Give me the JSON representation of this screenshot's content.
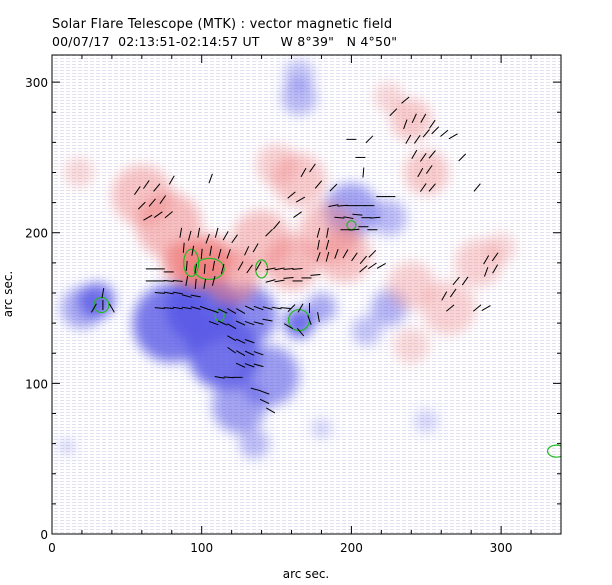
{
  "header": {
    "title": "Solar Flare Telescope (MTK) : vector magnetic field",
    "subtitle": "00/07/17  02:13:51-02:14:57 UT     W 8°39\"   N 4°50\""
  },
  "chart_data": {
    "type": "heatmap",
    "title": "Solar Flare Telescope (MTK) : vector magnetic field",
    "subtitle": "00/07/17  02:13:51-02:14:57 UT     W 8°39\"   N 4°50\"",
    "xlabel": "arc sec.",
    "ylabel": "arc sec.",
    "xlim": [
      0,
      340
    ],
    "ylim": [
      0,
      318
    ],
    "xticks": [
      0,
      100,
      200,
      300
    ],
    "yticks": [
      0,
      100,
      200,
      300
    ],
    "grid": false,
    "colors": {
      "positive_polarity": "#f08080",
      "negative_polarity": "#5a5ae6",
      "contour": "#22bb22",
      "vector": "#000000"
    },
    "positive_regions": [
      {
        "cx": 97,
        "cy": 175,
        "r": 12,
        "s": 1.0
      },
      {
        "cx": 105,
        "cy": 182,
        "r": 16,
        "s": 0.85
      },
      {
        "cx": 88,
        "cy": 180,
        "r": 14,
        "s": 0.8
      },
      {
        "cx": 120,
        "cy": 170,
        "r": 18,
        "s": 0.55
      },
      {
        "cx": 60,
        "cy": 225,
        "r": 20,
        "s": 0.45
      },
      {
        "cx": 78,
        "cy": 205,
        "r": 22,
        "s": 0.5
      },
      {
        "cx": 140,
        "cy": 195,
        "r": 20,
        "s": 0.45
      },
      {
        "cx": 160,
        "cy": 180,
        "r": 18,
        "s": 0.5
      },
      {
        "cx": 185,
        "cy": 200,
        "r": 20,
        "s": 0.45
      },
      {
        "cx": 195,
        "cy": 185,
        "r": 18,
        "s": 0.45
      },
      {
        "cx": 165,
        "cy": 235,
        "r": 18,
        "s": 0.4
      },
      {
        "cx": 150,
        "cy": 245,
        "r": 14,
        "s": 0.35
      },
      {
        "cx": 250,
        "cy": 240,
        "r": 15,
        "s": 0.4
      },
      {
        "cx": 240,
        "cy": 275,
        "r": 14,
        "s": 0.4
      },
      {
        "cx": 225,
        "cy": 290,
        "r": 10,
        "s": 0.3
      },
      {
        "cx": 285,
        "cy": 180,
        "r": 16,
        "s": 0.35
      },
      {
        "cx": 265,
        "cy": 150,
        "r": 18,
        "s": 0.35
      },
      {
        "cx": 240,
        "cy": 165,
        "r": 16,
        "s": 0.35
      },
      {
        "cx": 240,
        "cy": 125,
        "r": 12,
        "s": 0.3
      },
      {
        "cx": 18,
        "cy": 240,
        "r": 10,
        "s": 0.3
      },
      {
        "cx": 300,
        "cy": 190,
        "r": 10,
        "s": 0.3
      }
    ],
    "negative_regions": [
      {
        "cx": 100,
        "cy": 150,
        "r": 24,
        "s": 0.9
      },
      {
        "cx": 80,
        "cy": 140,
        "r": 26,
        "s": 0.8
      },
      {
        "cx": 115,
        "cy": 120,
        "r": 24,
        "s": 0.85
      },
      {
        "cx": 130,
        "cy": 145,
        "r": 20,
        "s": 0.7
      },
      {
        "cx": 145,
        "cy": 105,
        "r": 20,
        "s": 0.6
      },
      {
        "cx": 125,
        "cy": 85,
        "r": 18,
        "s": 0.55
      },
      {
        "cx": 30,
        "cy": 155,
        "r": 12,
        "s": 0.8
      },
      {
        "cx": 20,
        "cy": 150,
        "r": 14,
        "s": 0.5
      },
      {
        "cx": 165,
        "cy": 140,
        "r": 10,
        "s": 0.85
      },
      {
        "cx": 180,
        "cy": 150,
        "r": 10,
        "s": 0.5
      },
      {
        "cx": 200,
        "cy": 215,
        "r": 18,
        "s": 0.55
      },
      {
        "cx": 225,
        "cy": 210,
        "r": 12,
        "s": 0.4
      },
      {
        "cx": 165,
        "cy": 290,
        "r": 12,
        "s": 0.4
      },
      {
        "cx": 165,
        "cy": 305,
        "r": 10,
        "s": 0.35
      },
      {
        "cx": 225,
        "cy": 150,
        "r": 12,
        "s": 0.45
      },
      {
        "cx": 210,
        "cy": 135,
        "r": 10,
        "s": 0.35
      },
      {
        "cx": 135,
        "cy": 60,
        "r": 10,
        "s": 0.4
      },
      {
        "cx": 250,
        "cy": 75,
        "r": 8,
        "s": 0.25
      },
      {
        "cx": 10,
        "cy": 58,
        "r": 5,
        "s": 0.3
      },
      {
        "cx": 180,
        "cy": 70,
        "r": 7,
        "s": 0.25
      }
    ],
    "contours": [
      {
        "cx": 33,
        "cy": 152,
        "rx": 5,
        "ry": 5
      },
      {
        "cx": 165,
        "cy": 142,
        "rx": 7,
        "ry": 7
      },
      {
        "cx": 93,
        "cy": 180,
        "rx": 5,
        "ry": 9
      },
      {
        "cx": 105,
        "cy": 176,
        "rx": 10,
        "ry": 7
      },
      {
        "cx": 140,
        "cy": 176,
        "rx": 4,
        "ry": 6
      },
      {
        "cx": 112,
        "cy": 145,
        "rx": 3,
        "ry": 4
      },
      {
        "cx": 337,
        "cy": 55,
        "rx": 6,
        "ry": 4
      },
      {
        "cx": 200,
        "cy": 205,
        "rx": 3,
        "ry": 3
      }
    ],
    "vectors": [
      {
        "x": 57,
        "y": 228,
        "a": 55
      },
      {
        "x": 63,
        "y": 232,
        "a": 55
      },
      {
        "x": 70,
        "y": 230,
        "a": 50
      },
      {
        "x": 60,
        "y": 218,
        "a": 45
      },
      {
        "x": 67,
        "y": 220,
        "a": 50
      },
      {
        "x": 74,
        "y": 222,
        "a": 55
      },
      {
        "x": 80,
        "y": 235,
        "a": 60
      },
      {
        "x": 64,
        "y": 210,
        "a": 30
      },
      {
        "x": 71,
        "y": 212,
        "a": 35
      },
      {
        "x": 78,
        "y": 212,
        "a": 40
      },
      {
        "x": 106,
        "y": 236,
        "a": 70
      },
      {
        "x": 86,
        "y": 200,
        "a": 80
      },
      {
        "x": 92,
        "y": 198,
        "a": 75
      },
      {
        "x": 98,
        "y": 200,
        "a": 80
      },
      {
        "x": 104,
        "y": 196,
        "a": 70
      },
      {
        "x": 110,
        "y": 200,
        "a": 75
      },
      {
        "x": 116,
        "y": 198,
        "a": 60
      },
      {
        "x": 122,
        "y": 196,
        "a": 55
      },
      {
        "x": 88,
        "y": 190,
        "a": 85
      },
      {
        "x": 94,
        "y": 188,
        "a": 80
      },
      {
        "x": 100,
        "y": 186,
        "a": 85
      },
      {
        "x": 106,
        "y": 188,
        "a": 80
      },
      {
        "x": 112,
        "y": 186,
        "a": 75
      },
      {
        "x": 118,
        "y": 186,
        "a": 70
      },
      {
        "x": 90,
        "y": 178,
        "a": 85
      },
      {
        "x": 96,
        "y": 176,
        "a": 80
      },
      {
        "x": 102,
        "y": 176,
        "a": 85
      },
      {
        "x": 108,
        "y": 178,
        "a": 80
      },
      {
        "x": 114,
        "y": 176,
        "a": 75
      },
      {
        "x": 90,
        "y": 168,
        "a": 80
      },
      {
        "x": 96,
        "y": 166,
        "a": 85
      },
      {
        "x": 102,
        "y": 166,
        "a": 80
      },
      {
        "x": 108,
        "y": 168,
        "a": 75
      },
      {
        "x": 126,
        "y": 178,
        "a": 60
      },
      {
        "x": 132,
        "y": 176,
        "a": 55
      },
      {
        "x": 138,
        "y": 178,
        "a": 60
      },
      {
        "x": 130,
        "y": 188,
        "a": 65
      },
      {
        "x": 136,
        "y": 190,
        "a": 60
      },
      {
        "x": 145,
        "y": 200,
        "a": 45
      },
      {
        "x": 150,
        "y": 205,
        "a": 50
      },
      {
        "x": 146,
        "y": 176,
        "a": 10
      },
      {
        "x": 152,
        "y": 176,
        "a": 10
      },
      {
        "x": 158,
        "y": 176,
        "a": 5
      },
      {
        "x": 164,
        "y": 176,
        "a": 5
      },
      {
        "x": 146,
        "y": 168,
        "a": 15
      },
      {
        "x": 152,
        "y": 168,
        "a": 10
      },
      {
        "x": 158,
        "y": 170,
        "a": 5
      },
      {
        "x": 164,
        "y": 168,
        "a": 0
      },
      {
        "x": 170,
        "y": 170,
        "a": 0
      },
      {
        "x": 176,
        "y": 172,
        "a": 5
      },
      {
        "x": 178,
        "y": 200,
        "a": 75
      },
      {
        "x": 184,
        "y": 200,
        "a": 80
      },
      {
        "x": 178,
        "y": 192,
        "a": 80
      },
      {
        "x": 184,
        "y": 192,
        "a": 75
      },
      {
        "x": 178,
        "y": 184,
        "a": 70
      },
      {
        "x": 184,
        "y": 184,
        "a": 75
      },
      {
        "x": 190,
        "y": 186,
        "a": 70
      },
      {
        "x": 196,
        "y": 186,
        "a": 60
      },
      {
        "x": 202,
        "y": 184,
        "a": 55
      },
      {
        "x": 208,
        "y": 182,
        "a": 50
      },
      {
        "x": 214,
        "y": 186,
        "a": 45
      },
      {
        "x": 208,
        "y": 176,
        "a": 40
      },
      {
        "x": 214,
        "y": 178,
        "a": 35
      },
      {
        "x": 220,
        "y": 178,
        "a": 30
      },
      {
        "x": 236,
        "y": 272,
        "a": 70
      },
      {
        "x": 242,
        "y": 276,
        "a": 65
      },
      {
        "x": 248,
        "y": 276,
        "a": 60
      },
      {
        "x": 254,
        "y": 272,
        "a": 55
      },
      {
        "x": 238,
        "y": 262,
        "a": 60
      },
      {
        "x": 244,
        "y": 262,
        "a": 55
      },
      {
        "x": 250,
        "y": 266,
        "a": 50
      },
      {
        "x": 256,
        "y": 268,
        "a": 45
      },
      {
        "x": 262,
        "y": 266,
        "a": 40
      },
      {
        "x": 268,
        "y": 264,
        "a": 30
      },
      {
        "x": 242,
        "y": 252,
        "a": 60
      },
      {
        "x": 248,
        "y": 250,
        "a": 55
      },
      {
        "x": 254,
        "y": 252,
        "a": 50
      },
      {
        "x": 246,
        "y": 240,
        "a": 60
      },
      {
        "x": 252,
        "y": 242,
        "a": 55
      },
      {
        "x": 248,
        "y": 230,
        "a": 55
      },
      {
        "x": 254,
        "y": 230,
        "a": 50
      },
      {
        "x": 274,
        "y": 250,
        "a": 45
      },
      {
        "x": 284,
        "y": 230,
        "a": 50
      },
      {
        "x": 228,
        "y": 280,
        "a": 45
      },
      {
        "x": 236,
        "y": 288,
        "a": 40
      },
      {
        "x": 208,
        "y": 240,
        "a": 85
      },
      {
        "x": 188,
        "y": 230,
        "a": 45
      },
      {
        "x": 168,
        "y": 240,
        "a": 60
      },
      {
        "x": 174,
        "y": 243,
        "a": 55
      },
      {
        "x": 178,
        "y": 232,
        "a": 50
      },
      {
        "x": 160,
        "y": 225,
        "a": 40
      },
      {
        "x": 166,
        "y": 222,
        "a": 30
      },
      {
        "x": 164,
        "y": 212,
        "a": 35
      },
      {
        "x": 188,
        "y": 218,
        "a": 10
      },
      {
        "x": 194,
        "y": 218,
        "a": 5
      },
      {
        "x": 200,
        "y": 218,
        "a": 0
      },
      {
        "x": 206,
        "y": 218,
        "a": 0
      },
      {
        "x": 212,
        "y": 218,
        "a": 0
      },
      {
        "x": 192,
        "y": 210,
        "a": -5
      },
      {
        "x": 198,
        "y": 210,
        "a": -10
      },
      {
        "x": 204,
        "y": 212,
        "a": -5
      },
      {
        "x": 210,
        "y": 210,
        "a": 0
      },
      {
        "x": 216,
        "y": 210,
        "a": 5
      },
      {
        "x": 196,
        "y": 202,
        "a": 0
      },
      {
        "x": 202,
        "y": 202,
        "a": 5
      },
      {
        "x": 208,
        "y": 204,
        "a": 0
      },
      {
        "x": 214,
        "y": 202,
        "a": 0
      },
      {
        "x": 220,
        "y": 224,
        "a": 0
      },
      {
        "x": 226,
        "y": 224,
        "a": 0
      },
      {
        "x": 206,
        "y": 250,
        "a": 0
      },
      {
        "x": 270,
        "y": 168,
        "a": 50
      },
      {
        "x": 276,
        "y": 168,
        "a": 55
      },
      {
        "x": 262,
        "y": 158,
        "a": 60
      },
      {
        "x": 268,
        "y": 160,
        "a": 55
      },
      {
        "x": 266,
        "y": 150,
        "a": 40
      },
      {
        "x": 290,
        "y": 182,
        "a": 60
      },
      {
        "x": 296,
        "y": 184,
        "a": 55
      },
      {
        "x": 290,
        "y": 174,
        "a": 70
      },
      {
        "x": 296,
        "y": 176,
        "a": 60
      },
      {
        "x": 284,
        "y": 150,
        "a": 40
      },
      {
        "x": 290,
        "y": 150,
        "a": 30
      },
      {
        "x": 66,
        "y": 176,
        "a": 0
      },
      {
        "x": 72,
        "y": 176,
        "a": 0
      },
      {
        "x": 78,
        "y": 174,
        "a": 0
      },
      {
        "x": 66,
        "y": 168,
        "a": 0
      },
      {
        "x": 72,
        "y": 168,
        "a": 0
      },
      {
        "x": 78,
        "y": 168,
        "a": -5
      },
      {
        "x": 84,
        "y": 168,
        "a": -5
      },
      {
        "x": 72,
        "y": 160,
        "a": -5
      },
      {
        "x": 78,
        "y": 160,
        "a": -10
      },
      {
        "x": 84,
        "y": 160,
        "a": -10
      },
      {
        "x": 90,
        "y": 158,
        "a": -15
      },
      {
        "x": 96,
        "y": 158,
        "a": -10
      },
      {
        "x": 72,
        "y": 150,
        "a": -5
      },
      {
        "x": 78,
        "y": 150,
        "a": -5
      },
      {
        "x": 84,
        "y": 150,
        "a": -10
      },
      {
        "x": 90,
        "y": 150,
        "a": -10
      },
      {
        "x": 96,
        "y": 150,
        "a": -15
      },
      {
        "x": 102,
        "y": 150,
        "a": -20
      },
      {
        "x": 108,
        "y": 148,
        "a": -20
      },
      {
        "x": 114,
        "y": 148,
        "a": -25
      },
      {
        "x": 120,
        "y": 148,
        "a": -30
      },
      {
        "x": 126,
        "y": 148,
        "a": -30
      },
      {
        "x": 132,
        "y": 150,
        "a": -25
      },
      {
        "x": 138,
        "y": 150,
        "a": -20
      },
      {
        "x": 144,
        "y": 150,
        "a": -15
      },
      {
        "x": 150,
        "y": 150,
        "a": -10
      },
      {
        "x": 156,
        "y": 150,
        "a": -5
      },
      {
        "x": 108,
        "y": 140,
        "a": -20
      },
      {
        "x": 114,
        "y": 140,
        "a": -25
      },
      {
        "x": 120,
        "y": 138,
        "a": -30
      },
      {
        "x": 126,
        "y": 140,
        "a": -25
      },
      {
        "x": 132,
        "y": 140,
        "a": -20
      },
      {
        "x": 138,
        "y": 140,
        "a": -15
      },
      {
        "x": 144,
        "y": 142,
        "a": -10
      },
      {
        "x": 120,
        "y": 130,
        "a": -30
      },
      {
        "x": 126,
        "y": 128,
        "a": -25
      },
      {
        "x": 132,
        "y": 128,
        "a": -20
      },
      {
        "x": 120,
        "y": 122,
        "a": -35
      },
      {
        "x": 126,
        "y": 120,
        "a": -30
      },
      {
        "x": 132,
        "y": 120,
        "a": -25
      },
      {
        "x": 138,
        "y": 120,
        "a": -20
      },
      {
        "x": 126,
        "y": 112,
        "a": -25
      },
      {
        "x": 132,
        "y": 112,
        "a": -20
      },
      {
        "x": 138,
        "y": 112,
        "a": -15
      },
      {
        "x": 112,
        "y": 104,
        "a": -10
      },
      {
        "x": 118,
        "y": 104,
        "a": -5
      },
      {
        "x": 124,
        "y": 104,
        "a": 0
      },
      {
        "x": 136,
        "y": 96,
        "a": -15
      },
      {
        "x": 142,
        "y": 94,
        "a": -20
      },
      {
        "x": 142,
        "y": 88,
        "a": -25
      },
      {
        "x": 146,
        "y": 82,
        "a": -30
      },
      {
        "x": 34,
        "y": 160,
        "a": 80
      },
      {
        "x": 34,
        "y": 152,
        "a": 90
      },
      {
        "x": 28,
        "y": 150,
        "a": 60
      },
      {
        "x": 40,
        "y": 150,
        "a": -60
      },
      {
        "x": 160,
        "y": 150,
        "a": 45
      },
      {
        "x": 166,
        "y": 150,
        "a": 60
      },
      {
        "x": 172,
        "y": 150,
        "a": 90
      },
      {
        "x": 172,
        "y": 142,
        "a": 110
      },
      {
        "x": 166,
        "y": 134,
        "a": 130
      },
      {
        "x": 158,
        "y": 138,
        "a": 150
      },
      {
        "x": 178,
        "y": 144,
        "a": 100
      },
      {
        "x": 212,
        "y": 262,
        "a": 45
      },
      {
        "x": 200,
        "y": 262,
        "a": 0
      }
    ]
  }
}
